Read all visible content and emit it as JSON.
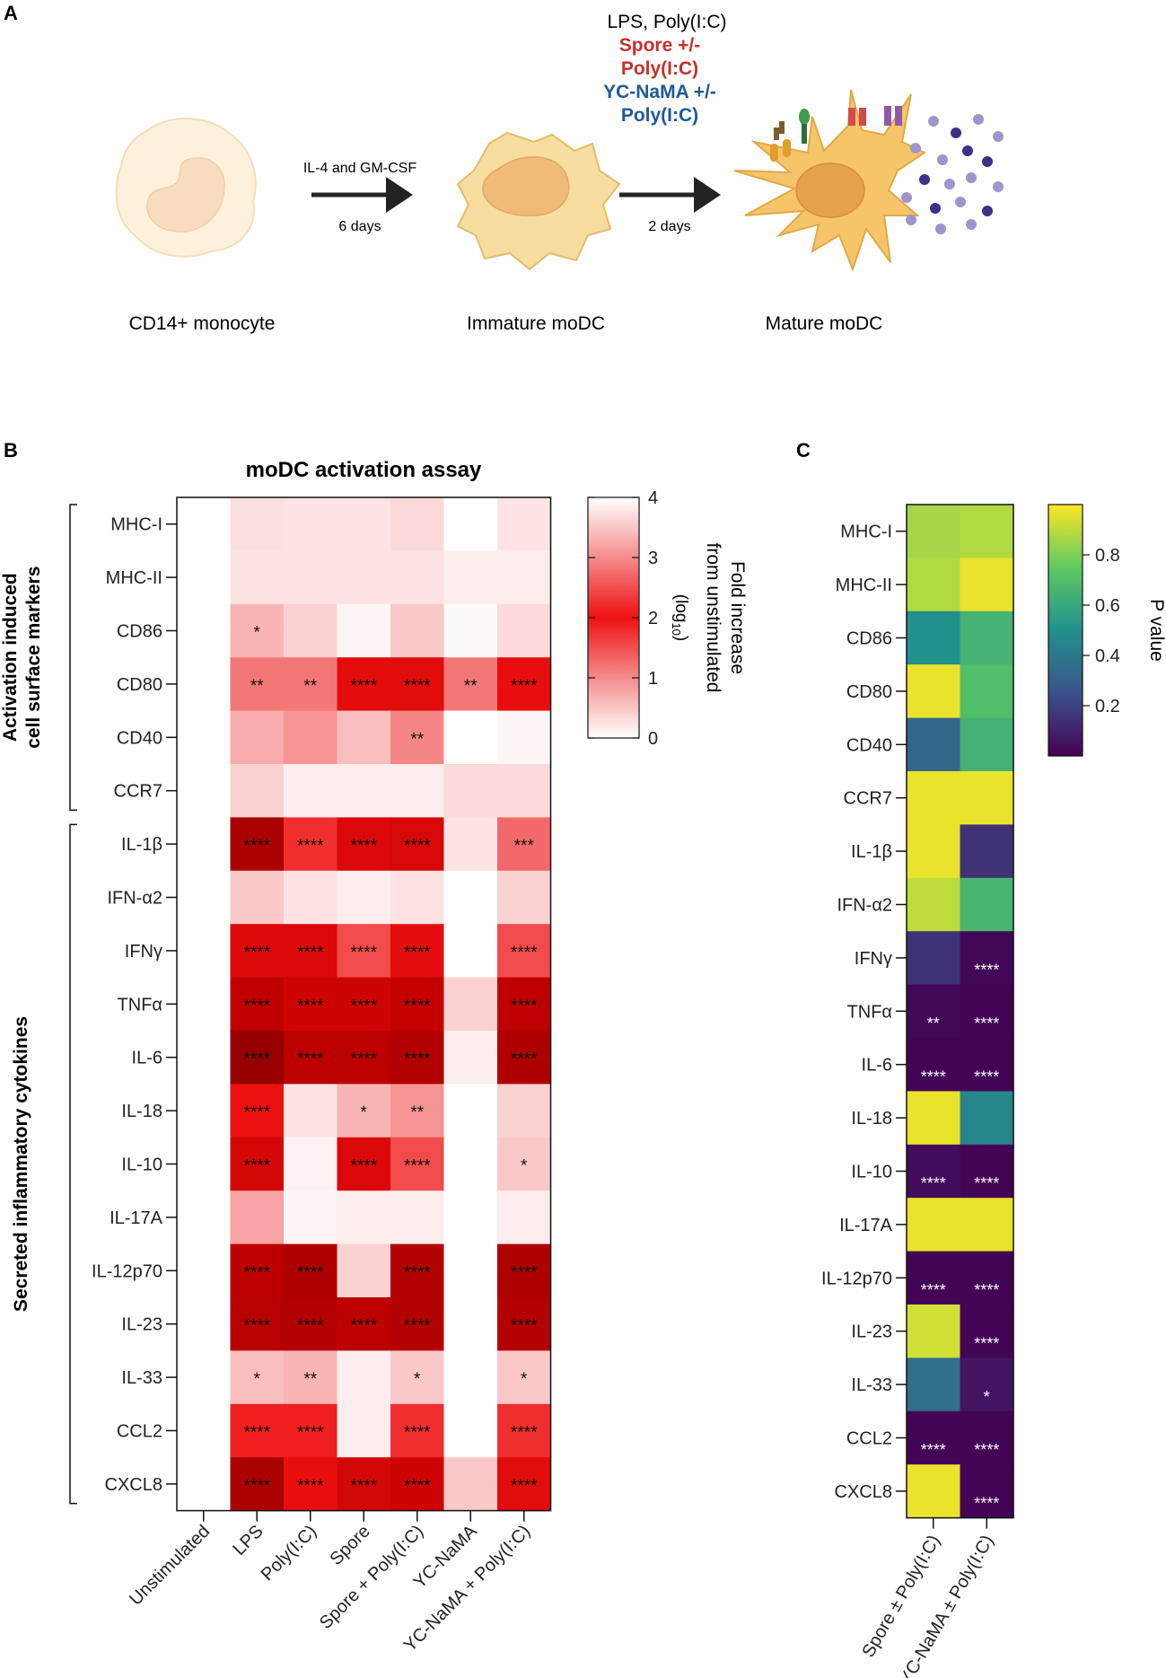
{
  "panels": {
    "a": "A",
    "b": "B",
    "c": "C"
  },
  "schematic": {
    "stimuli": {
      "line1": "LPS, Poly(I:C)",
      "line2": "Spore +/-",
      "line3": "Poly(I:C)",
      "line4": "YC-NaMA +/-",
      "line5": "Poly(I:C)"
    },
    "step1": {
      "top": "IL-4 and GM-CSF",
      "bottom": "6 days"
    },
    "step2": {
      "bottom": "2 days"
    },
    "cells": {
      "monocyte": "CD14+ monocyte",
      "immature": "Immature moDC",
      "mature": "Mature moDC"
    },
    "colors": {
      "spore": "#c9302c",
      "ycnama": "#1f5a96",
      "cell_fill": "#f5d68a",
      "cell_stroke": "#e3b04b",
      "nucleus": "#e6b56a",
      "dot_dark": "#3f2f86",
      "dot_light": "#9f95cc"
    }
  },
  "chart_data": [
    {
      "type": "heatmap",
      "title": "moDC activation assay",
      "columns": [
        "Unstimulated",
        "LPS",
        "Poly(I:C)",
        "Spore",
        "Spore + Poly(I:C)",
        "YC-NaMA",
        "YC-NaMA + Poly(I:C)"
      ],
      "rows": [
        "MHC-I",
        "MHC-II",
        "CD86",
        "CD80",
        "CD40",
        "CCR7",
        "IL-1β",
        "IFN-α2",
        "IFNγ",
        "TNFα",
        "IL-6",
        "IL-18",
        "IL-10",
        "IL-17A",
        "IL-12p70",
        "IL-23",
        "IL-33",
        "CCL2",
        "CXCL8"
      ],
      "groups": [
        {
          "label_line1": "Activation induced",
          "label_line2": "cell surface markers",
          "first_row": 0,
          "last_row": 5
        },
        {
          "label_line1": "Secreted inflammatory cytokines",
          "label_line2": "",
          "first_row": 6,
          "last_row": 18
        }
      ],
      "values": [
        [
          0,
          0.35,
          0.3,
          0.3,
          0.4,
          0.0,
          0.3
        ],
        [
          0,
          0.3,
          0.3,
          0.3,
          0.3,
          0.2,
          0.2
        ],
        [
          0,
          0.8,
          0.5,
          0.1,
          0.6,
          0.05,
          0.4
        ],
        [
          0,
          1.3,
          1.3,
          2.3,
          2.4,
          1.3,
          2.2
        ],
        [
          0,
          0.9,
          1.1,
          0.7,
          1.2,
          0.0,
          0.1
        ],
        [
          0,
          0.5,
          0.2,
          0.2,
          0.2,
          0.4,
          0.4
        ],
        [
          0,
          3.9,
          1.8,
          2.6,
          2.7,
          0.3,
          1.4
        ],
        [
          0,
          0.6,
          0.3,
          0.2,
          0.3,
          0.0,
          0.5
        ],
        [
          0,
          2.6,
          2.6,
          1.6,
          2.3,
          0.0,
          1.6
        ],
        [
          0,
          3.4,
          3.0,
          3.0,
          3.3,
          0.5,
          3.4
        ],
        [
          0,
          4.4,
          3.5,
          3.5,
          3.7,
          0.2,
          3.8
        ],
        [
          0,
          2.0,
          0.3,
          0.8,
          1.1,
          0.0,
          0.5
        ],
        [
          0,
          2.8,
          0.15,
          2.6,
          1.6,
          0.0,
          0.6
        ],
        [
          0,
          1.0,
          0.1,
          0.2,
          0.2,
          0.0,
          0.2
        ],
        [
          0,
          3.5,
          3.8,
          0.5,
          3.7,
          0.0,
          3.8
        ],
        [
          0,
          3.6,
          3.7,
          3.5,
          3.7,
          0.0,
          3.7
        ],
        [
          0,
          0.7,
          0.8,
          0.2,
          0.6,
          0.0,
          0.6
        ],
        [
          0,
          1.9,
          1.9,
          0.2,
          1.8,
          0.0,
          1.8
        ],
        [
          0,
          3.9,
          2.2,
          2.8,
          3.0,
          0.6,
          2.4
        ]
      ],
      "stars": [
        [
          "",
          "",
          "",
          "",
          "",
          "",
          ""
        ],
        [
          "",
          "",
          "",
          "",
          "",
          "",
          ""
        ],
        [
          "",
          "*",
          "",
          "",
          "",
          "",
          ""
        ],
        [
          "",
          "**",
          "**",
          "****",
          "****",
          "**",
          "****"
        ],
        [
          "",
          "",
          "",
          "",
          "**",
          "",
          ""
        ],
        [
          "",
          "",
          "",
          "",
          "",
          "",
          ""
        ],
        [
          "",
          "****",
          "****",
          "****",
          "****",
          "",
          "***"
        ],
        [
          "",
          "",
          "",
          "",
          "",
          "",
          ""
        ],
        [
          "",
          "****",
          "****",
          "****",
          "****",
          "",
          "****"
        ],
        [
          "",
          "****",
          "****",
          "****",
          "****",
          "",
          "****"
        ],
        [
          "",
          "****",
          "****",
          "****",
          "****",
          "",
          "****"
        ],
        [
          "",
          "****",
          "",
          "*",
          "**",
          "",
          ""
        ],
        [
          "",
          "****",
          "",
          "****",
          "****",
          "",
          "*"
        ],
        [
          "",
          "",
          "",
          "",
          "",
          "",
          ""
        ],
        [
          "",
          "****",
          "****",
          "",
          "****",
          "",
          "****"
        ],
        [
          "",
          "****",
          "****",
          "****",
          "****",
          "",
          "****"
        ],
        [
          "",
          "*",
          "**",
          "",
          "*",
          "",
          "*"
        ],
        [
          "",
          "****",
          "****",
          "",
          "****",
          "",
          "****"
        ],
        [
          "",
          "****",
          "****",
          "****",
          "****",
          "",
          "****"
        ]
      ],
      "colorbar": {
        "label_line1": "Fold increase",
        "label_line2": "from unstimulated",
        "label_line3": "(log",
        "label_sub": "10",
        "label_close": ")",
        "range": [
          0,
          4
        ],
        "ticks": [
          "0",
          "1",
          "2",
          "3",
          "4"
        ],
        "colors": [
          "#ffffff",
          "#f58c8c",
          "#ee1111",
          "#f58c8c",
          "#ffffff"
        ]
      }
    },
    {
      "type": "heatmap",
      "columns": [
        "Spore ± Poly(I:C)",
        "YC-NaMA ± Poly(I:C)"
      ],
      "rows": [
        "MHC-I",
        "MHC-II",
        "CD86",
        "CD80",
        "CD40",
        "CCR7",
        "IL-1β",
        "IFN-α2",
        "IFNγ",
        "TNFα",
        "IL-6",
        "IL-18",
        "IL-10",
        "IL-17A",
        "IL-12p70",
        "IL-23",
        "IL-33",
        "CCL2",
        "CXCL8"
      ],
      "values": [
        [
          0.86,
          0.88
        ],
        [
          0.88,
          0.97
        ],
        [
          0.5,
          0.65
        ],
        [
          0.97,
          0.7
        ],
        [
          0.33,
          0.64
        ],
        [
          0.97,
          0.97
        ],
        [
          0.97,
          0.15
        ],
        [
          0.9,
          0.66
        ],
        [
          0.15,
          0.02
        ],
        [
          0.02,
          0.01
        ],
        [
          0.01,
          0.01
        ],
        [
          0.97,
          0.46
        ],
        [
          0.03,
          0.01
        ],
        [
          0.97,
          0.97
        ],
        [
          0.01,
          0.01
        ],
        [
          0.93,
          0.01
        ],
        [
          0.36,
          0.06
        ],
        [
          0.01,
          0.01
        ],
        [
          0.97,
          0.01
        ]
      ],
      "stars": [
        [
          "",
          ""
        ],
        [
          "",
          ""
        ],
        [
          "",
          ""
        ],
        [
          "",
          ""
        ],
        [
          "",
          ""
        ],
        [
          "",
          ""
        ],
        [
          "",
          ""
        ],
        [
          "",
          ""
        ],
        [
          "",
          "****"
        ],
        [
          "**",
          "****"
        ],
        [
          "****",
          "****"
        ],
        [
          "",
          ""
        ],
        [
          "****",
          "****"
        ],
        [
          "",
          ""
        ],
        [
          "****",
          "****"
        ],
        [
          "",
          "****"
        ],
        [
          "",
          "*"
        ],
        [
          "****",
          "****"
        ],
        [
          "",
          "****"
        ]
      ],
      "colorbar": {
        "label": "P value",
        "range": [
          0,
          1
        ],
        "ticks": [
          "0.2",
          "0.4",
          "0.6",
          "0.8"
        ],
        "tick_values": [
          0.2,
          0.4,
          0.6,
          0.8
        ],
        "colors": [
          "#440154",
          "#3b528b",
          "#21918c",
          "#5ec962",
          "#fde725"
        ]
      }
    }
  ]
}
